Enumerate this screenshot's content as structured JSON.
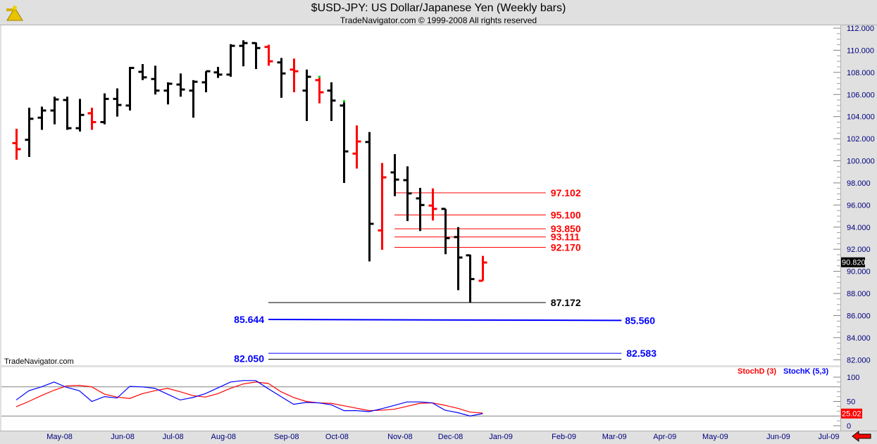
{
  "header": {
    "title": "$USD-JPY:  US Dollar/Japanese Yen  (Weekly bars)",
    "copyright": "TradeNavigator.com © 1999-2008 All rights reserved",
    "logo_icon": "sextant-icon"
  },
  "watermark": "TradeNavigator.com",
  "colors": {
    "up_bar": "#000000",
    "alt_bar": "#ff0000",
    "stochD": "#ff0000",
    "stochK": "#0000ff",
    "axis_text": "#000080",
    "panel_bg": "#e0e0e0",
    "green_marker": "#00cc00"
  },
  "chart_data": [
    {
      "type": "ohlc",
      "title": "$USD-JPY:  US Dollar/Japanese Yen  (Weekly bars)",
      "ylim": [
        82,
        112
      ],
      "y_ticks": [
        "112.000",
        "110.000",
        "108.000",
        "106.000",
        "104.000",
        "102.000",
        "100.000",
        "98.000",
        "96.000",
        "94.000",
        "92.000",
        "90.000",
        "88.000",
        "86.000",
        "84.000",
        "82.000"
      ],
      "last_price": "90.820",
      "x_range": [
        "2008-04-04",
        "2009-07-03"
      ],
      "x_ticks": [
        {
          "label": "May-08",
          "date": "2008-05-02"
        },
        {
          "label": "Jun-08",
          "date": "2008-06-06"
        },
        {
          "label": "Jul-08",
          "date": "2008-07-04"
        },
        {
          "label": "Aug-08",
          "date": "2008-08-01"
        },
        {
          "label": "Sep-08",
          "date": "2008-09-05"
        },
        {
          "label": "Oct-08",
          "date": "2008-10-03"
        },
        {
          "label": "Nov-08",
          "date": "2008-11-07"
        },
        {
          "label": "Dec-08",
          "date": "2008-12-05"
        },
        {
          "label": "Jan-09",
          "date": "2009-01-02"
        },
        {
          "label": "Feb-09",
          "date": "2009-02-06"
        },
        {
          "label": "Mar-09",
          "date": "2009-03-06"
        },
        {
          "label": "Apr-09",
          "date": "2009-04-03"
        },
        {
          "label": "May-09",
          "date": "2009-05-01"
        },
        {
          "label": "Jun-09",
          "date": "2009-06-05"
        },
        {
          "label": "Jul-09",
          "date": "2009-07-03"
        }
      ],
      "bars": [
        {
          "date": "2008-04-04",
          "o": 101.6,
          "h": 102.9,
          "l": 100.1,
          "c": 101.05,
          "color": "red"
        },
        {
          "date": "2008-04-11",
          "o": 101.9,
          "h": 104.8,
          "l": 100.35,
          "c": 103.8,
          "color": "black"
        },
        {
          "date": "2008-04-18",
          "o": 103.9,
          "h": 104.9,
          "l": 102.8,
          "c": 104.55,
          "color": "black"
        },
        {
          "date": "2008-04-25",
          "o": 104.55,
          "h": 105.8,
          "l": 103.3,
          "c": 105.55,
          "color": "black"
        },
        {
          "date": "2008-05-02",
          "o": 105.5,
          "h": 105.8,
          "l": 102.8,
          "c": 102.95,
          "color": "black"
        },
        {
          "date": "2008-05-09",
          "o": 102.95,
          "h": 105.6,
          "l": 102.65,
          "c": 104.15,
          "color": "black"
        },
        {
          "date": "2008-05-16",
          "o": 104.3,
          "h": 104.8,
          "l": 102.8,
          "c": 103.5,
          "color": "red"
        },
        {
          "date": "2008-05-23",
          "o": 103.5,
          "h": 106.1,
          "l": 103.3,
          "c": 105.6,
          "color": "black"
        },
        {
          "date": "2008-05-30",
          "o": 105.6,
          "h": 106.55,
          "l": 104.0,
          "c": 105.05,
          "color": "black"
        },
        {
          "date": "2008-06-06",
          "o": 105.0,
          "h": 108.5,
          "l": 104.55,
          "c": 108.4,
          "color": "black"
        },
        {
          "date": "2008-06-13",
          "o": 108.05,
          "h": 108.75,
          "l": 107.3,
          "c": 107.55,
          "color": "black"
        },
        {
          "date": "2008-06-20",
          "o": 107.4,
          "h": 108.6,
          "l": 106.0,
          "c": 106.35,
          "color": "black"
        },
        {
          "date": "2008-06-27",
          "o": 106.35,
          "h": 107.1,
          "l": 105.1,
          "c": 106.97,
          "color": "black"
        },
        {
          "date": "2008-07-04",
          "o": 106.9,
          "h": 107.9,
          "l": 105.8,
          "c": 106.45,
          "color": "black"
        },
        {
          "date": "2008-07-11",
          "o": 106.35,
          "h": 107.3,
          "l": 103.9,
          "c": 107.15,
          "color": "black"
        },
        {
          "date": "2008-07-18",
          "o": 107.1,
          "h": 108.1,
          "l": 106.2,
          "c": 108.1,
          "color": "black"
        },
        {
          "date": "2008-07-25",
          "o": 108.0,
          "h": 108.5,
          "l": 107.5,
          "c": 107.8,
          "color": "black"
        },
        {
          "date": "2008-08-01",
          "o": 107.8,
          "h": 110.55,
          "l": 107.6,
          "c": 110.4,
          "color": "black"
        },
        {
          "date": "2008-08-08",
          "o": 110.4,
          "h": 110.9,
          "l": 108.55,
          "c": 110.65,
          "color": "black"
        },
        {
          "date": "2008-08-15",
          "o": 110.65,
          "h": 110.7,
          "l": 108.3,
          "c": 110.2,
          "color": "black"
        },
        {
          "date": "2008-08-22",
          "o": 110.3,
          "h": 110.5,
          "l": 108.6,
          "c": 109.0,
          "color": "red"
        },
        {
          "date": "2008-08-29",
          "o": 108.9,
          "h": 109.3,
          "l": 105.7,
          "c": 107.9,
          "color": "black"
        },
        {
          "date": "2008-09-05",
          "o": 108.25,
          "h": 109.25,
          "l": 106.2,
          "c": 108.1,
          "color": "red"
        },
        {
          "date": "2008-09-12",
          "o": 106.35,
          "h": 108.25,
          "l": 103.6,
          "c": 107.6,
          "color": "black"
        },
        {
          "date": "2008-09-19",
          "o": 107.3,
          "h": 107.5,
          "l": 105.2,
          "c": 106.2,
          "color": "red",
          "marker": true
        },
        {
          "date": "2008-09-26",
          "o": 106.35,
          "h": 107.1,
          "l": 103.6,
          "c": 105.45,
          "color": "black"
        },
        {
          "date": "2008-10-03",
          "o": 105.0,
          "h": 105.3,
          "l": 98.0,
          "c": 100.85,
          "color": "black",
          "marker": true
        },
        {
          "date": "2008-10-10",
          "o": 100.65,
          "h": 103.2,
          "l": 99.3,
          "c": 101.75,
          "color": "red"
        },
        {
          "date": "2008-10-17",
          "o": 101.7,
          "h": 102.6,
          "l": 90.9,
          "c": 94.3,
          "color": "black"
        },
        {
          "date": "2008-10-24",
          "o": 93.7,
          "h": 99.8,
          "l": 91.95,
          "c": 98.5,
          "color": "red"
        },
        {
          "date": "2008-10-31",
          "o": 98.95,
          "h": 100.6,
          "l": 96.8,
          "c": 98.3,
          "color": "black"
        },
        {
          "date": "2008-11-07",
          "o": 98.25,
          "h": 99.5,
          "l": 94.55,
          "c": 97.05,
          "color": "black"
        },
        {
          "date": "2008-11-14",
          "o": 96.6,
          "h": 97.55,
          "l": 93.65,
          "c": 96.0,
          "color": "black"
        },
        {
          "date": "2008-11-21",
          "o": 95.95,
          "h": 97.5,
          "l": 94.6,
          "c": 95.65,
          "color": "red"
        },
        {
          "date": "2008-11-28",
          "o": 95.65,
          "h": 95.65,
          "l": 91.55,
          "c": 93.0,
          "color": "black"
        },
        {
          "date": "2008-12-05",
          "o": 93.1,
          "h": 94.0,
          "l": 88.3,
          "c": 91.25,
          "color": "black"
        },
        {
          "date": "2008-12-12",
          "o": 91.45,
          "h": 91.5,
          "l": 87.17,
          "c": 89.3,
          "color": "black"
        },
        {
          "date": "2008-12-19",
          "o": 89.15,
          "h": 91.4,
          "l": 89.15,
          "c": 90.8,
          "color": "red"
        }
      ],
      "levels": [
        {
          "value": 97.102,
          "label": "97.102",
          "color": "#ff0000",
          "from": "2008-10-31",
          "to": "2009-01-23",
          "label_side": "right"
        },
        {
          "value": 95.1,
          "label": "95.100",
          "color": "#ff0000",
          "from": "2008-10-31",
          "to": "2009-01-23",
          "label_side": "right"
        },
        {
          "value": 93.85,
          "label": "93.850",
          "color": "#ff0000",
          "from": "2008-10-31",
          "to": "2009-01-23",
          "label_side": "right"
        },
        {
          "value": 93.111,
          "label": "93.111",
          "color": "#ff0000",
          "from": "2008-10-31",
          "to": "2009-01-23",
          "label_side": "right"
        },
        {
          "value": 92.17,
          "label": "92.170",
          "color": "#ff0000",
          "from": "2008-10-31",
          "to": "2009-01-23",
          "label_side": "right"
        },
        {
          "value": 87.172,
          "label": "87.172",
          "color": "#000000",
          "from": "2008-08-22",
          "to": "2009-01-23",
          "label_side": "right"
        },
        {
          "value": 85.644,
          "value_end": 85.56,
          "label": "85.644",
          "label_end": "85.560",
          "color": "#0000ff",
          "thick": true,
          "from": "2008-08-22",
          "to": "2009-03-06",
          "label_side": "both"
        },
        {
          "value": 82.583,
          "label": "82.583",
          "color": "#0000ff",
          "from": "2008-08-22",
          "to": "2009-03-06",
          "label_side": "right",
          "label_color": "#0000ff"
        },
        {
          "value": 82.05,
          "label": "82.050",
          "color": "#000000",
          "from": "2008-08-22",
          "to": "2009-03-06",
          "label_side": "left",
          "label_color": "#0000ff"
        }
      ]
    },
    {
      "type": "line",
      "ylim": [
        0,
        100
      ],
      "y_ticks": [
        "100",
        "50",
        "0"
      ],
      "reference_lines": [
        80,
        20
      ],
      "last_value": "25.02",
      "series": [
        {
          "name": "StochD (3)",
          "color": "#ff0000",
          "values": [
            39,
            50,
            62,
            73,
            82,
            83,
            80,
            65,
            59,
            56,
            66,
            72,
            77,
            70,
            62,
            59,
            66,
            77,
            86,
            90,
            87,
            70,
            58,
            50,
            47,
            46,
            41,
            36,
            31,
            32,
            34,
            40,
            46,
            47,
            42,
            36,
            28,
            26
          ]
        },
        {
          "name": "StochK (5,3)",
          "color": "#0000ff",
          "values": [
            53,
            72,
            80,
            90,
            79,
            72,
            50,
            60,
            57,
            81,
            80,
            77,
            65,
            53,
            58,
            66,
            78,
            90,
            93,
            93,
            76,
            60,
            44,
            48,
            47,
            43,
            31,
            31,
            29,
            35,
            42,
            49,
            49,
            47,
            32,
            27,
            20,
            25.02
          ]
        }
      ]
    }
  ]
}
